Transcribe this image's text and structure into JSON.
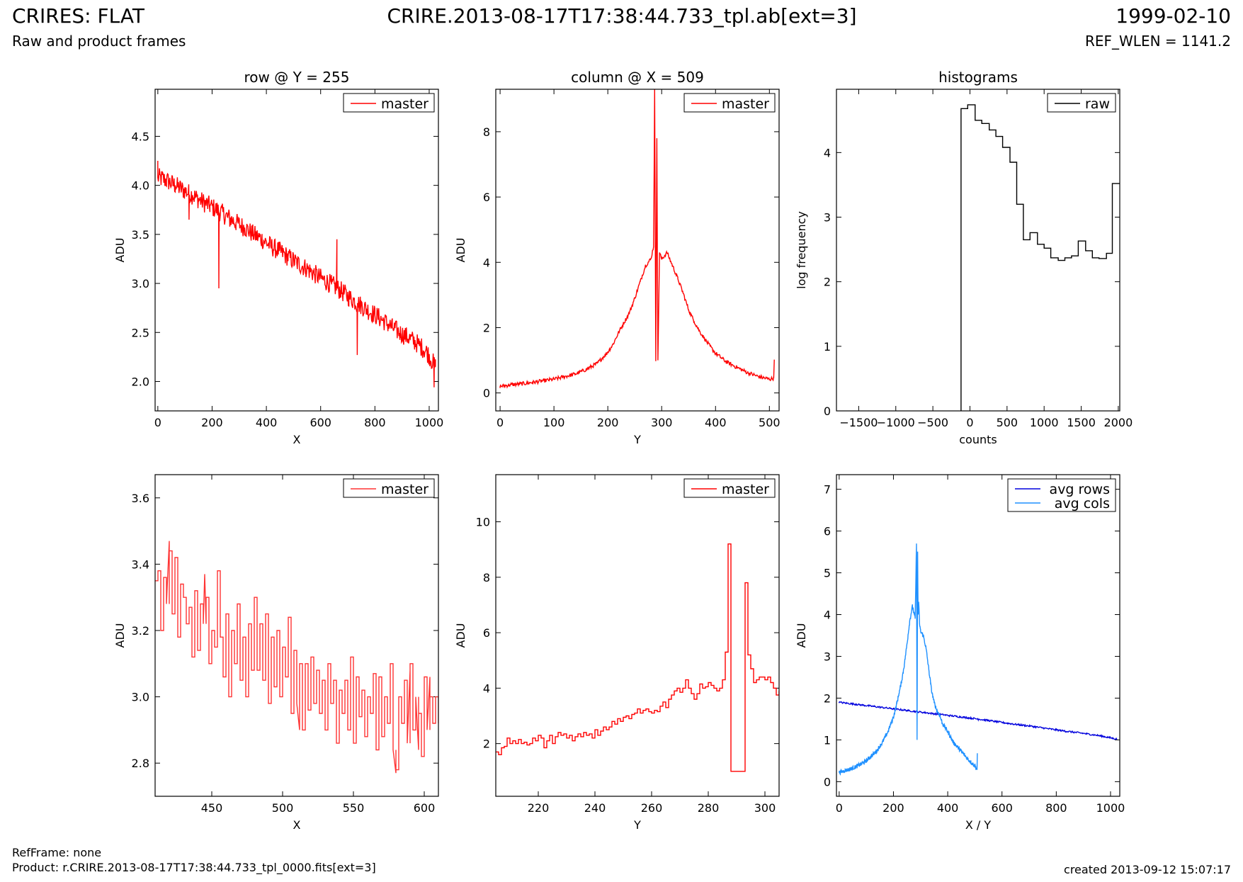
{
  "header": {
    "title_left": "CRIRES: FLAT",
    "title_center": "CRIRE.2013-08-17T17:38:44.733_tpl.ab[ext=3]",
    "title_right": "1999-02-10",
    "subtitle_left": "Raw and product frames",
    "subtitle_right": "REF_WLEN = 1141.2"
  },
  "footer": {
    "ref_frame": "RefFrame: none",
    "product": "Product: r.CRIRE.2013-08-17T17:38:44.733_tpl_0000.fits[ext=3]",
    "created": "created 2013-09-12 15:07:17"
  },
  "colors": {
    "red": "#ff0000",
    "lightred": "#ff3333",
    "black": "#000000",
    "blue": "#0000dd",
    "lightblue": "#1e90ff"
  },
  "chart_data": [
    {
      "id": "row-full",
      "type": "line",
      "title": "row @ Y = 255",
      "xlabel": "X",
      "ylabel": "ADU",
      "xlim": [
        -10,
        1034
      ],
      "ylim": [
        1.7,
        4.98
      ],
      "xticks": [
        0,
        200,
        400,
        600,
        800,
        1000
      ],
      "yticks": [
        2.0,
        2.5,
        3.0,
        3.5,
        4.0,
        4.5
      ],
      "ytick_labels": [
        "2.0",
        "2.5",
        "3.0",
        "3.5",
        "4.0",
        "4.5"
      ],
      "legend": "top-right",
      "series": [
        {
          "name": "master",
          "color": "#ff0000",
          "x": [
            0,
            32,
            64,
            96,
            128,
            160,
            192,
            224,
            256,
            288,
            320,
            352,
            384,
            416,
            448,
            480,
            512,
            544,
            576,
            608,
            640,
            672,
            704,
            736,
            768,
            800,
            832,
            864,
            896,
            928,
            960,
            992,
            1023
          ],
          "y": [
            4.08,
            4.05,
            4.0,
            3.95,
            3.9,
            3.84,
            3.79,
            3.74,
            3.68,
            3.62,
            3.57,
            3.5,
            3.45,
            3.38,
            3.33,
            3.27,
            3.21,
            3.16,
            3.1,
            3.04,
            2.99,
            2.93,
            2.86,
            2.8,
            2.74,
            2.68,
            2.62,
            2.55,
            2.49,
            2.44,
            2.38,
            2.3,
            2.15
          ],
          "noise": 0.1,
          "spikes": [
            [
              0,
              4.25
            ],
            [
              115,
              3.65
            ],
            [
              225,
              2.95
            ],
            [
              265,
              3.58
            ],
            [
              660,
              3.45
            ],
            [
              735,
              2.27
            ],
            [
              1018,
              1.94
            ]
          ]
        }
      ]
    },
    {
      "id": "col-full",
      "type": "line",
      "title": "column @ X = 509",
      "xlabel": "Y",
      "ylabel": "ADU",
      "xlim": [
        -8,
        518
      ],
      "ylim": [
        -0.55,
        9.3
      ],
      "xticks": [
        0,
        100,
        200,
        300,
        400,
        500
      ],
      "yticks": [
        0,
        2,
        4,
        6,
        8
      ],
      "ytick_labels": [
        "0",
        "2",
        "4",
        "6",
        "8"
      ],
      "legend": "top-right",
      "series": [
        {
          "name": "master",
          "color": "#ff0000",
          "x": [
            0,
            20,
            40,
            60,
            80,
            100,
            120,
            140,
            160,
            180,
            200,
            210,
            220,
            230,
            240,
            250,
            260,
            270,
            280,
            285,
            287,
            289,
            291,
            293,
            296,
            300,
            310,
            320,
            330,
            340,
            350,
            360,
            370,
            380,
            390,
            400,
            420,
            440,
            460,
            480,
            500,
            508,
            509
          ],
          "y": [
            0.2,
            0.25,
            0.28,
            0.32,
            0.37,
            0.42,
            0.5,
            0.58,
            0.72,
            0.9,
            1.25,
            1.5,
            1.85,
            2.15,
            2.45,
            2.9,
            3.4,
            3.9,
            4.1,
            4.5,
            9.3,
            1.0,
            7.8,
            1.0,
            4.3,
            4.1,
            4.3,
            3.9,
            3.5,
            3.05,
            2.55,
            2.2,
            1.9,
            1.65,
            1.42,
            1.22,
            0.95,
            0.78,
            0.62,
            0.5,
            0.42,
            0.45,
            1.02
          ],
          "noise": 0.06
        }
      ]
    },
    {
      "id": "hist",
      "type": "line",
      "title": "histograms",
      "xlabel": "counts",
      "ylabel": "log frequency",
      "xlim": [
        -1800,
        2020
      ],
      "ylim": [
        0,
        4.98
      ],
      "xticks": [
        -1500,
        -1000,
        -500,
        0,
        500,
        1000,
        1500,
        2000
      ],
      "xtick_labels": [
        "−1500",
        "−1000",
        "−500",
        "0",
        "500",
        "1000",
        "1500",
        "2000"
      ],
      "yticks": [
        0,
        1,
        2,
        3,
        4
      ],
      "ytick_labels": [
        "0",
        "1",
        "2",
        "3",
        "4"
      ],
      "legend": "top-right",
      "series": [
        {
          "name": "raw",
          "color": "#000000",
          "step": true,
          "x": [
            -120,
            -120,
            -30,
            -30,
            70,
            70,
            160,
            160,
            260,
            260,
            350,
            350,
            440,
            440,
            540,
            540,
            630,
            630,
            720,
            720,
            810,
            810,
            910,
            910,
            1000,
            1000,
            1090,
            1090,
            1190,
            1190,
            1280,
            1280,
            1370,
            1370,
            1460,
            1460,
            1560,
            1560,
            1650,
            1650,
            1740,
            1740,
            1840,
            1840,
            1920,
            1920,
            2020
          ],
          "y": [
            0,
            4.68,
            4.68,
            4.74,
            4.74,
            4.5,
            4.5,
            4.45,
            4.45,
            4.35,
            4.35,
            4.25,
            4.25,
            4.08,
            4.08,
            3.85,
            3.85,
            3.2,
            3.2,
            2.65,
            2.65,
            2.76,
            2.76,
            2.58,
            2.58,
            2.52,
            2.52,
            2.37,
            2.37,
            2.33,
            2.33,
            2.37,
            2.37,
            2.4,
            2.4,
            2.63,
            2.63,
            2.48,
            2.48,
            2.37,
            2.37,
            2.36,
            2.36,
            2.44,
            2.44,
            3.52,
            3.52
          ]
        }
      ]
    },
    {
      "id": "row-zoom",
      "type": "line",
      "title": "",
      "xlabel": "X",
      "ylabel": "ADU",
      "xlim": [
        410,
        610
      ],
      "ylim": [
        2.7,
        3.67
      ],
      "xticks": [
        450,
        500,
        550,
        600
      ],
      "yticks": [
        2.8,
        3.0,
        3.2,
        3.4,
        3.6
      ],
      "ytick_labels": [
        "2.8",
        "3.0",
        "3.2",
        "3.4",
        "3.6"
      ],
      "legend": "top-right",
      "series": [
        {
          "name": "master",
          "color": "#ff3333",
          "step": true,
          "x": [
            410,
            412,
            414,
            416,
            418,
            420,
            422,
            424,
            426,
            428,
            430,
            432,
            434,
            436,
            438,
            440,
            442,
            444,
            446,
            448,
            450,
            452,
            454,
            456,
            458,
            460,
            462,
            464,
            466,
            468,
            470,
            472,
            474,
            476,
            478,
            480,
            482,
            484,
            486,
            488,
            490,
            492,
            494,
            496,
            498,
            500,
            502,
            504,
            506,
            508,
            510,
            512,
            514,
            516,
            518,
            520,
            522,
            524,
            526,
            528,
            530,
            532,
            534,
            536,
            538,
            540,
            542,
            544,
            546,
            548,
            550,
            552,
            554,
            556,
            558,
            560,
            562,
            564,
            566,
            568,
            570,
            572,
            574,
            576,
            578,
            580,
            582,
            584,
            586,
            588,
            590,
            592,
            594,
            596,
            598,
            600,
            602,
            604,
            606,
            608,
            610
          ],
          "y": [
            3.35,
            3.38,
            3.2,
            3.36,
            3.28,
            3.44,
            3.25,
            3.42,
            3.18,
            3.34,
            3.3,
            3.22,
            3.27,
            3.12,
            3.32,
            3.14,
            3.28,
            3.22,
            3.3,
            3.1,
            3.2,
            3.15,
            3.38,
            3.18,
            3.06,
            3.25,
            3.0,
            3.2,
            3.1,
            3.28,
            3.05,
            3.18,
            3.0,
            3.22,
            3.08,
            3.3,
            3.08,
            3.22,
            3.05,
            3.25,
            2.98,
            3.18,
            3.03,
            3.2,
            3.0,
            3.15,
            3.06,
            3.24,
            2.95,
            3.14,
            2.98,
            3.1,
            2.9,
            3.1,
            2.96,
            3.12,
            2.98,
            3.08,
            2.95,
            3.05,
            2.9,
            3.1,
            2.98,
            3.05,
            2.86,
            3.02,
            2.95,
            3.05,
            2.9,
            3.12,
            2.86,
            3.06,
            2.94,
            3.02,
            2.88,
            3.0,
            2.95,
            3.07,
            2.84,
            3.06,
            2.88,
            3.0,
            2.92,
            3.1,
            2.84,
            2.78,
            3.0,
            2.92,
            3.05,
            2.86,
            3.1,
            2.9,
            3.0,
            2.95,
            2.82,
            3.06,
            2.9,
            3.0,
            2.92,
            3.0,
            2.92
          ],
          "spikes": [
            [
              420,
              3.47
            ],
            [
              445,
              3.37
            ],
            [
              512,
              2.9
            ],
            [
              580,
              2.77
            ],
            [
              590,
              3.08
            ],
            [
              596,
              2.84
            ],
            [
              604,
              3.06
            ]
          ]
        }
      ]
    },
    {
      "id": "col-zoom",
      "type": "line",
      "title": "",
      "xlabel": "Y",
      "ylabel": "ADU",
      "xlim": [
        205,
        305
      ],
      "ylim": [
        0.1,
        11.7
      ],
      "xticks": [
        220,
        240,
        260,
        280,
        300
      ],
      "yticks": [
        2,
        4,
        6,
        8,
        10
      ],
      "ytick_labels": [
        "2",
        "4",
        "6",
        "8",
        "10"
      ],
      "legend": "top-right",
      "series": [
        {
          "name": "master",
          "color": "#ff0000",
          "step": true,
          "x": [
            205,
            206,
            207,
            208,
            209,
            210,
            211,
            212,
            213,
            214,
            215,
            216,
            217,
            218,
            219,
            220,
            221,
            222,
            223,
            224,
            225,
            226,
            227,
            228,
            229,
            230,
            231,
            232,
            233,
            234,
            235,
            236,
            237,
            238,
            239,
            240,
            241,
            242,
            243,
            244,
            245,
            246,
            247,
            248,
            249,
            250,
            251,
            252,
            253,
            254,
            255,
            256,
            257,
            258,
            259,
            260,
            261,
            262,
            263,
            264,
            265,
            266,
            267,
            268,
            269,
            270,
            271,
            272,
            273,
            274,
            275,
            276,
            277,
            278,
            279,
            280,
            281,
            282,
            283,
            284,
            285,
            286,
            287,
            288,
            289,
            290,
            291,
            292,
            293,
            294,
            295,
            296,
            297,
            298,
            299,
            300,
            301,
            302,
            303,
            304,
            305
          ],
          "y": [
            1.7,
            1.6,
            1.85,
            1.9,
            2.2,
            2.0,
            2.1,
            2.0,
            2.15,
            2.0,
            2.05,
            1.95,
            2.0,
            2.2,
            2.1,
            2.3,
            2.2,
            1.85,
            2.1,
            2.3,
            2.0,
            2.25,
            2.4,
            2.3,
            2.35,
            2.2,
            2.3,
            2.1,
            2.25,
            2.35,
            2.25,
            2.4,
            2.3,
            2.35,
            2.2,
            2.5,
            2.3,
            2.45,
            2.6,
            2.5,
            2.6,
            2.8,
            2.7,
            2.9,
            2.8,
            2.95,
            3.0,
            2.9,
            3.05,
            3.1,
            3.25,
            3.1,
            3.2,
            3.25,
            3.15,
            3.1,
            3.2,
            3.15,
            3.35,
            3.5,
            3.3,
            3.6,
            3.75,
            3.9,
            4.0,
            3.85,
            4.0,
            4.3,
            4.0,
            3.8,
            3.6,
            3.8,
            4.15,
            4.0,
            4.05,
            4.2,
            4.1,
            4.0,
            3.9,
            4.0,
            4.3,
            5.3,
            9.2,
            1.0,
            1.0,
            1.0,
            1.0,
            1.0,
            7.8,
            5.2,
            4.7,
            4.2,
            4.3,
            4.4,
            4.4,
            4.3,
            4.4,
            4.2,
            4.0,
            3.75,
            3.9
          ],
          "spikes": []
        }
      ]
    },
    {
      "id": "avg",
      "type": "line",
      "title": "",
      "xlabel": "X / Y",
      "ylabel": "ADU",
      "xlim": [
        -10,
        1034
      ],
      "ylim": [
        -0.35,
        7.35
      ],
      "xticks": [
        0,
        200,
        400,
        600,
        800,
        1000
      ],
      "yticks": [
        0,
        1,
        2,
        3,
        4,
        5,
        6,
        7
      ],
      "ytick_labels": [
        "0",
        "1",
        "2",
        "3",
        "4",
        "5",
        "6",
        "7"
      ],
      "legend": "top-right",
      "series": [
        {
          "name": "avg rows",
          "color": "#0000dd",
          "x": [
            0,
            64,
            128,
            192,
            256,
            320,
            384,
            448,
            512,
            576,
            640,
            704,
            768,
            832,
            896,
            960,
            1023
          ],
          "y": [
            1.9,
            1.85,
            1.8,
            1.75,
            1.7,
            1.65,
            1.6,
            1.55,
            1.5,
            1.44,
            1.38,
            1.33,
            1.27,
            1.21,
            1.16,
            1.1,
            1.02
          ],
          "noise": 0.02
        },
        {
          "name": "avg cols",
          "color": "#1e90ff",
          "x": [
            0,
            20,
            40,
            60,
            80,
            100,
            120,
            140,
            160,
            180,
            200,
            210,
            220,
            230,
            240,
            250,
            260,
            270,
            280,
            285,
            287,
            289,
            291,
            293,
            296,
            300,
            310,
            320,
            330,
            340,
            350,
            360,
            370,
            380,
            390,
            400,
            420,
            440,
            460,
            480,
            500,
            508,
            509
          ],
          "y": [
            0.22,
            0.26,
            0.3,
            0.35,
            0.42,
            0.5,
            0.62,
            0.75,
            0.95,
            1.2,
            1.55,
            1.8,
            2.1,
            2.4,
            2.8,
            3.3,
            3.85,
            4.2,
            3.9,
            5.7,
            1.0,
            5.5,
            4.0,
            4.3,
            3.8,
            3.6,
            3.5,
            3.2,
            2.7,
            2.2,
            1.9,
            1.7,
            1.6,
            1.4,
            1.3,
            1.2,
            0.95,
            0.8,
            0.65,
            0.5,
            0.38,
            0.3,
            0.68
          ],
          "noise": 0.05
        }
      ]
    }
  ]
}
